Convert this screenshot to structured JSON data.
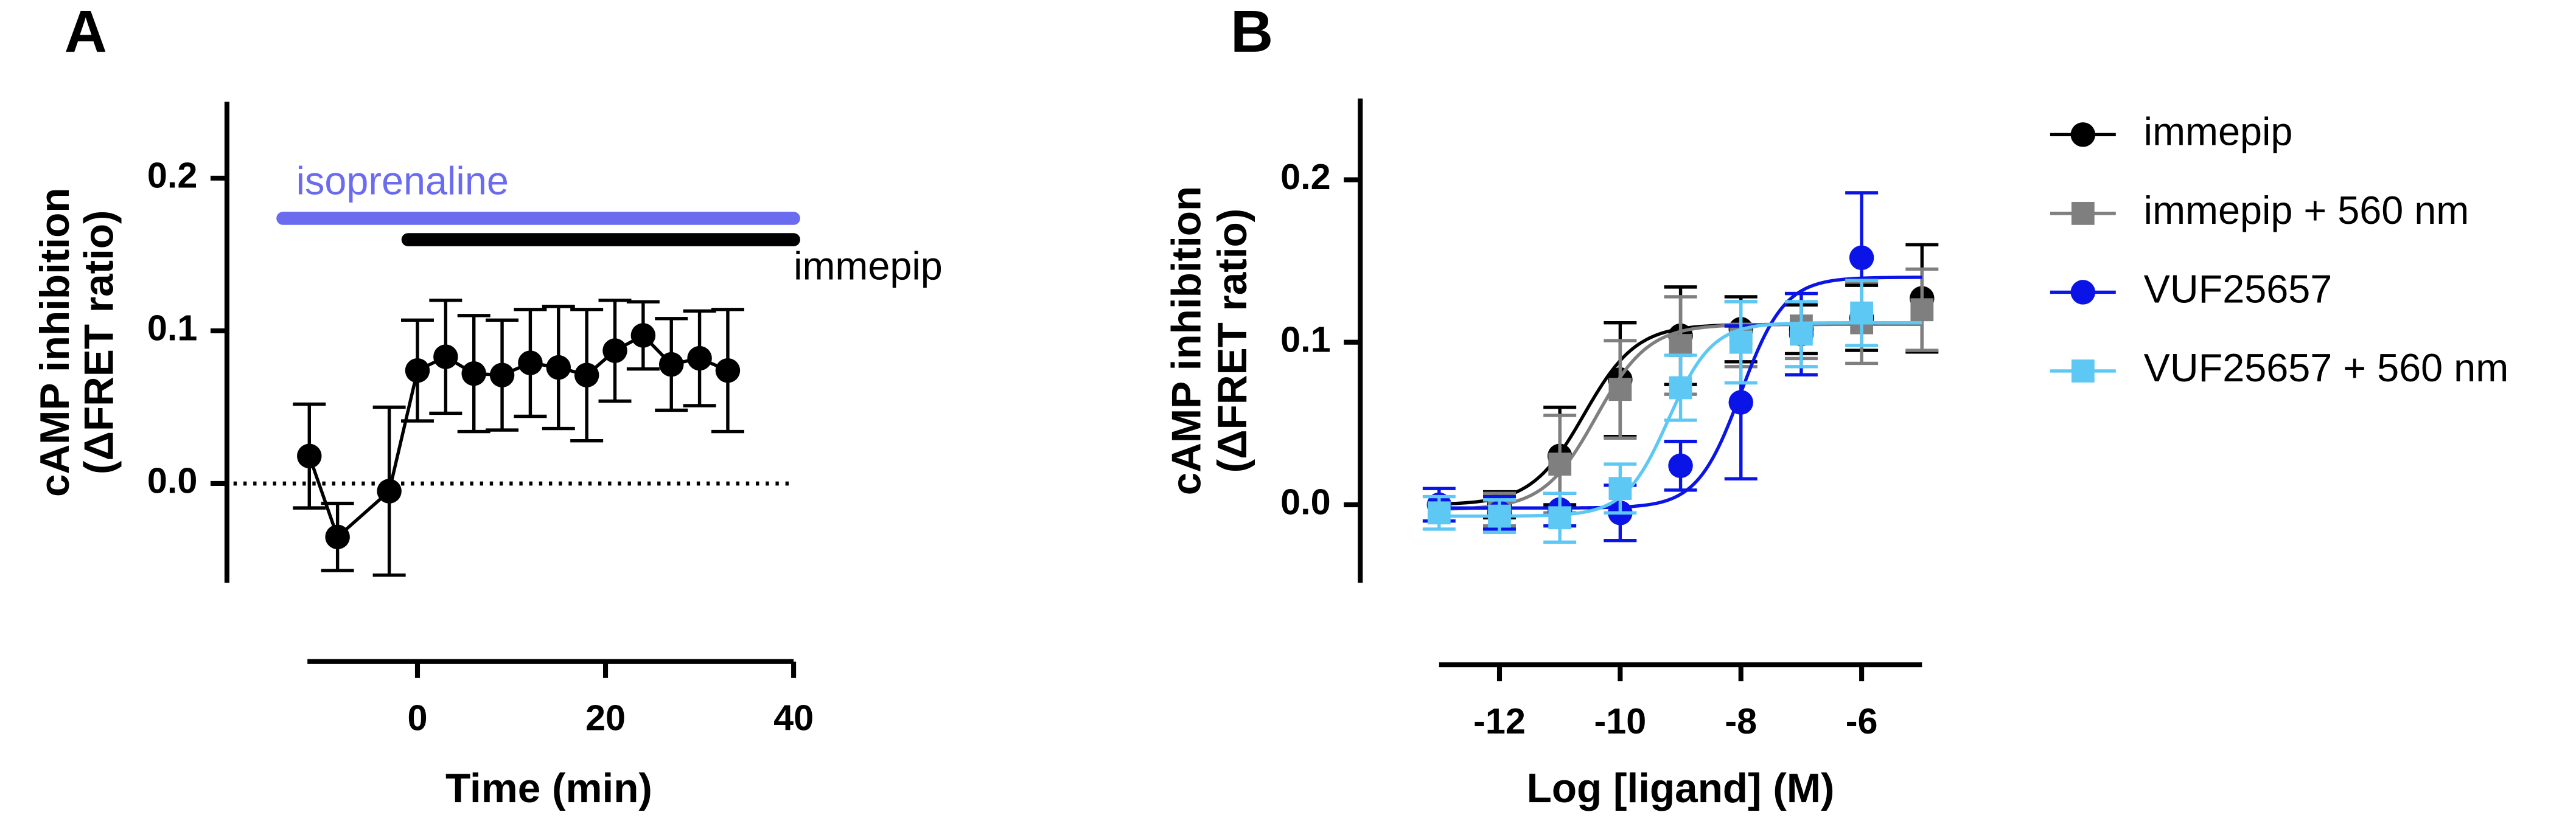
{
  "chart_data": [
    {
      "type": "line",
      "panel_label": "A",
      "ylabel": [
        "cAMP inhibition",
        "(ΔFRET ratio)"
      ],
      "xlabel": "Time (min)",
      "xlim": [
        -11.7,
        40
      ],
      "xticks": [
        0,
        20,
        40
      ],
      "ylim": [
        -0.065,
        0.25
      ],
      "yticks": [
        {
          "value": 0,
          "label": "0.0"
        },
        0.1,
        0.2
      ],
      "reference_line": 0,
      "annotations": [
        {
          "text": "isoprenaline",
          "color": "#6b6bf0",
          "start": -14.3,
          "end": 40
        },
        {
          "text": "immepip",
          "color": "#000000",
          "start": -1,
          "end": 40
        }
      ],
      "series": [
        {
          "name": null,
          "color": "#000000",
          "marker": "circle",
          "x": [
            -11.5,
            -8.5,
            -3,
            0,
            3,
            6,
            9,
            12,
            15,
            18,
            21,
            24,
            27,
            30,
            33
          ],
          "values": [
            0.018,
            -0.035,
            -0.005,
            0.074,
            0.083,
            0.072,
            0.071,
            0.079,
            0.076,
            0.071,
            0.087,
            0.097,
            0.078,
            0.082,
            0.074
          ],
          "errors": [
            0.034,
            0.022,
            0.055,
            0.033,
            0.037,
            0.038,
            0.036,
            0.035,
            0.04,
            0.043,
            0.033,
            0.022,
            0.03,
            0.031,
            0.04
          ]
        }
      ]
    },
    {
      "type": "scatter",
      "panel_label": "B",
      "ylabel": [
        "cAMP inhibition",
        "(ΔFRET ratio)"
      ],
      "xlabel": "Log [ligand] (M)",
      "xlim": [
        -13,
        -5
      ],
      "xticks": [
        -12,
        -10,
        -8,
        -6
      ],
      "ylim": [
        -0.048,
        0.25
      ],
      "yticks": [
        {
          "value": 0,
          "label": "0.0"
        },
        0.1,
        0.2
      ],
      "series": [
        {
          "name": "immepip",
          "color": "#000000",
          "marker": "circle",
          "x": [
            -12,
            -11,
            -10,
            -9,
            -8,
            -7,
            -6,
            -5
          ],
          "values": [
            0.0,
            0.03,
            0.077,
            0.104,
            0.108,
            0.108,
            0.115,
            0.127
          ],
          "errors": [
            0.008,
            0.03,
            0.035,
            0.03,
            0.02,
            0.015,
            0.02,
            0.033
          ],
          "fit": {
            "bottom": 0,
            "top": 0.111,
            "logEC50": -10.6,
            "hill": 1
          }
        },
        {
          "name": "immepip + 560 nm",
          "color": "#7f7f7f",
          "marker": "square",
          "x": [
            -12,
            -11,
            -10,
            -9,
            -8,
            -7,
            -6,
            -5
          ],
          "values": [
            -0.003,
            0.025,
            0.071,
            0.098,
            0.105,
            0.11,
            0.112,
            0.12
          ],
          "errors": [
            0.01,
            0.03,
            0.03,
            0.03,
            0.02,
            0.02,
            0.025,
            0.025
          ],
          "fit": {
            "bottom": -0.003,
            "top": 0.111,
            "logEC50": -10.4,
            "hill": 1
          }
        },
        {
          "name": "VUF25657",
          "color": "#0a14e6",
          "marker": "circle",
          "x": [
            -13,
            -12,
            -11,
            -10,
            -9,
            -8,
            -7,
            -6
          ],
          "values": [
            0.0,
            -0.005,
            -0.003,
            -0.005,
            0.024,
            0.063,
            0.105,
            0.152
          ],
          "errors": [
            0.01,
            0.01,
            0.01,
            0.017,
            0.015,
            0.047,
            0.025,
            0.04
          ],
          "fit": {
            "bottom": -0.002,
            "top": 0.14,
            "logEC50": -8.0,
            "hill": 1.2
          }
        },
        {
          "name": "VUF25657 + 560 nm",
          "color": "#5ec8f5",
          "marker": "square",
          "x": [
            -13,
            -12,
            -11,
            -10,
            -9,
            -8,
            -7,
            -6
          ],
          "values": [
            -0.005,
            -0.007,
            -0.008,
            0.01,
            0.072,
            0.1,
            0.105,
            0.118
          ],
          "errors": [
            0.01,
            0.01,
            0.015,
            0.015,
            0.02,
            0.025,
            0.02,
            0.02
          ],
          "fit": {
            "bottom": -0.007,
            "top": 0.112,
            "logEC50": -9.2,
            "hill": 1.2
          }
        }
      ]
    }
  ]
}
